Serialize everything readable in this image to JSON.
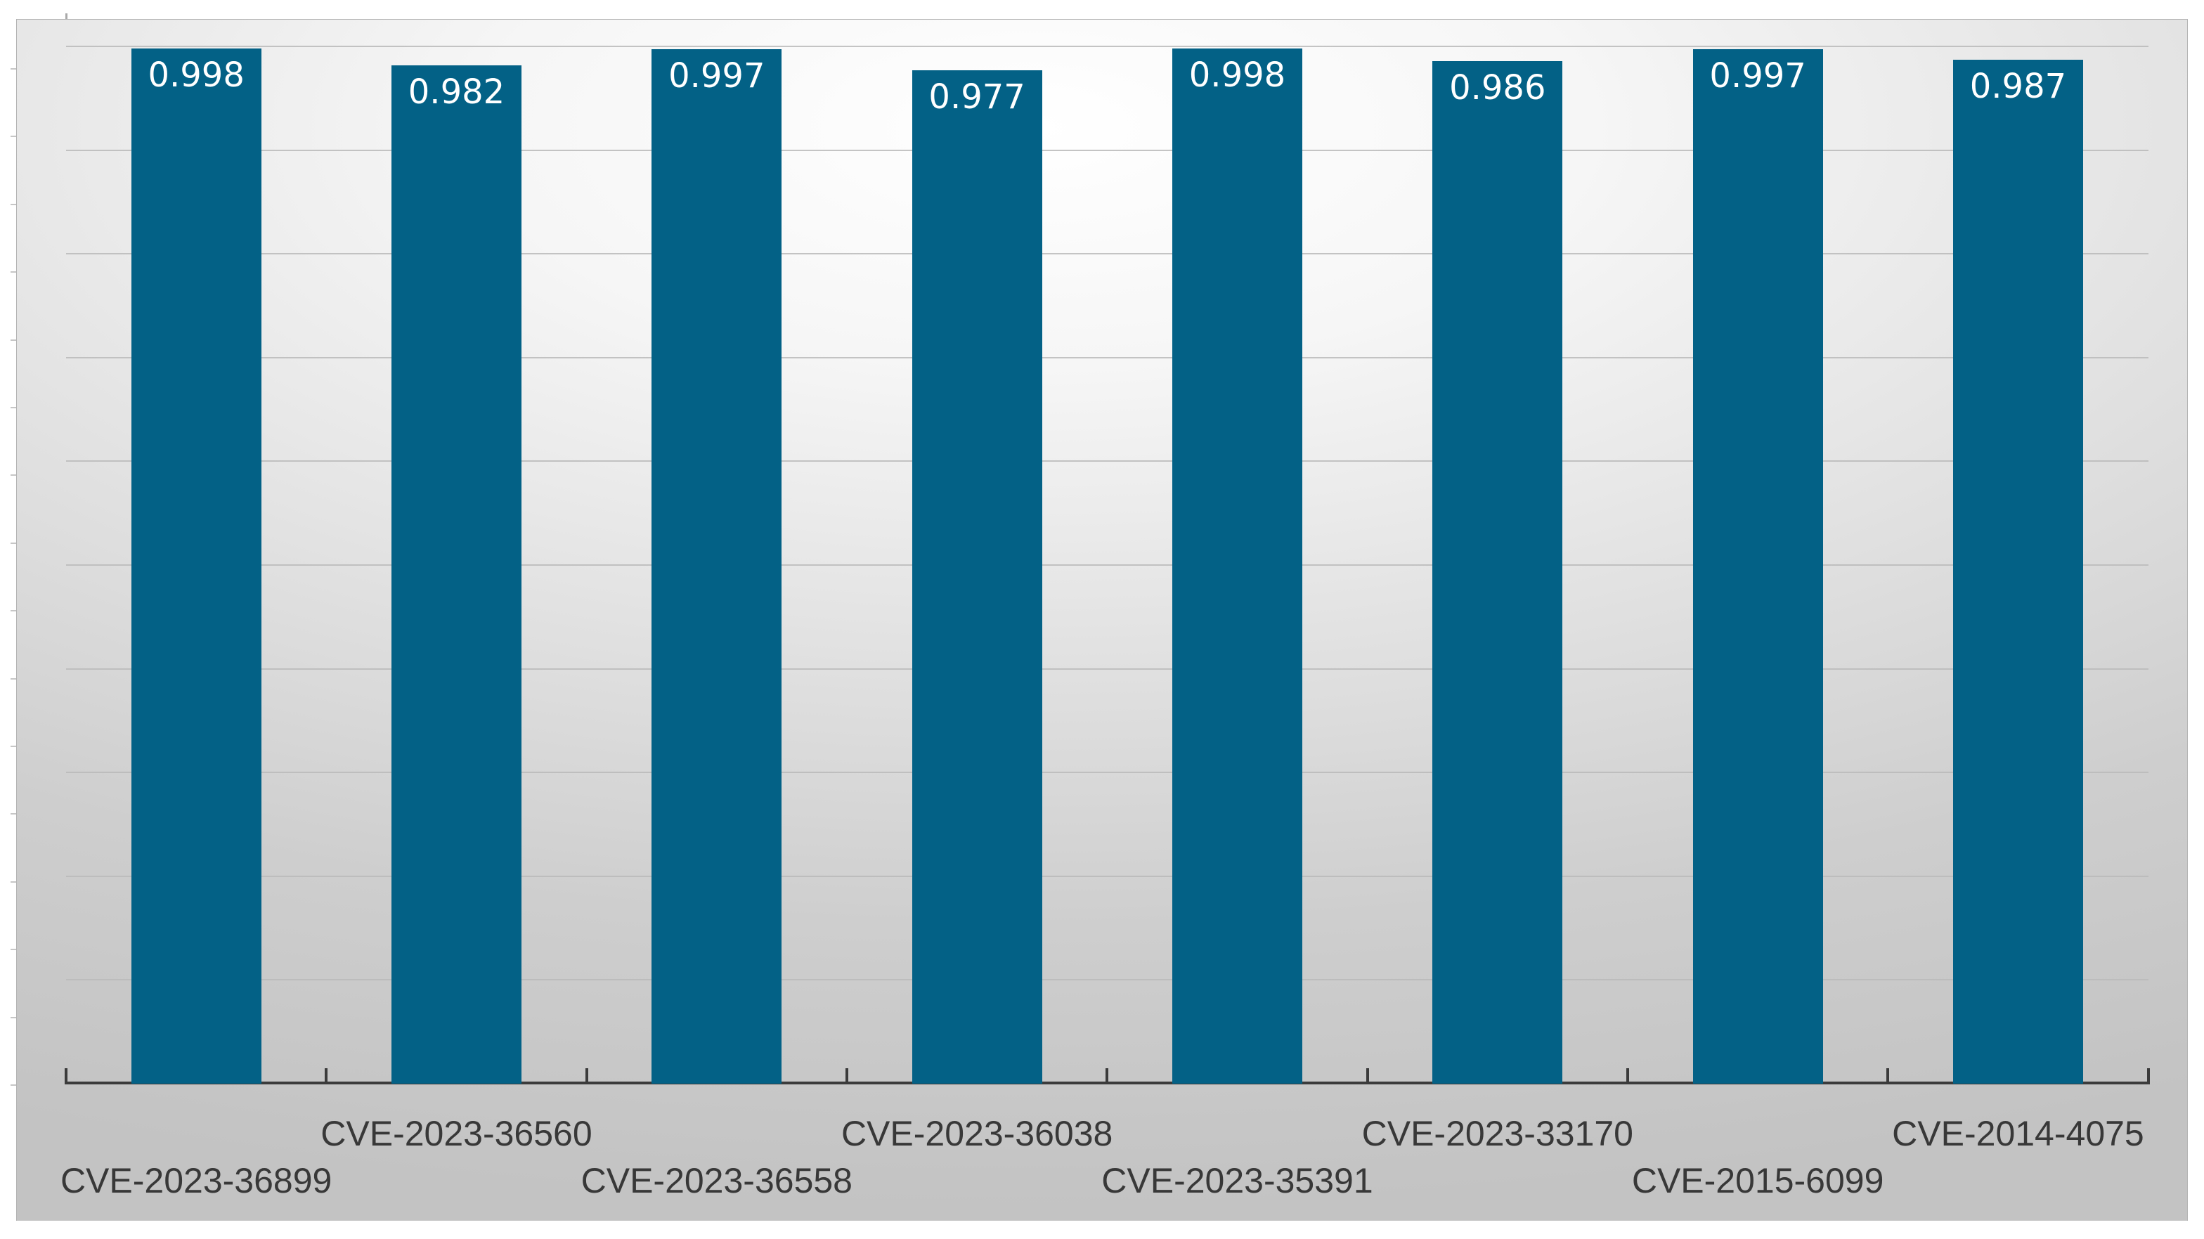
{
  "chart_data": {
    "type": "bar",
    "title": "",
    "xlabel": "",
    "ylabel": "",
    "categories": [
      "CVE-2023-36899",
      "CVE-2023-36560",
      "CVE-2023-36558",
      "CVE-2023-36038",
      "CVE-2023-35391",
      "CVE-2023-33170",
      "CVE-2015-6099",
      "CVE-2014-4075"
    ],
    "values": [
      0.998,
      0.982,
      0.997,
      0.977,
      0.998,
      0.986,
      0.997,
      0.987
    ],
    "value_labels": [
      "0.998",
      "0.982",
      "0.997",
      "0.977",
      "0.998",
      "0.986",
      "0.997",
      "0.987"
    ],
    "ylim": [
      0,
      1.02
    ],
    "gridline_step": 0.1,
    "grid": "horizontal",
    "legend": "none",
    "y_tick_labels_visible": false,
    "x_label_rows": "staggered",
    "bar_color": "#036186",
    "bar_value_text_color": "#ffffff",
    "axis_line_color": "#3b3b3b",
    "x_label_text_color": "#383838"
  }
}
